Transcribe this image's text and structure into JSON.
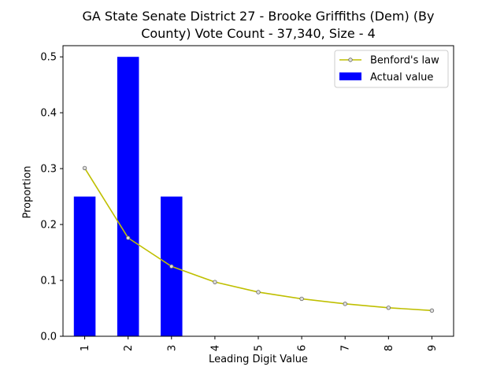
{
  "chart_data": {
    "type": "bar",
    "title_line1": "GA State Senate District 27 - Brooke Griffiths (Dem) (By",
    "title_line2": "County) Vote Count - 37,340, Size - 4",
    "xlabel": "Leading Digit Value",
    "ylabel": "Proportion",
    "categories": [
      "1",
      "2",
      "3",
      "4",
      "5",
      "6",
      "7",
      "8",
      "9"
    ],
    "ylim": [
      0,
      0.52
    ],
    "yticks": [
      0.0,
      0.1,
      0.2,
      0.3,
      0.4,
      0.5
    ],
    "ytick_labels": [
      "0.0",
      "0.1",
      "0.2",
      "0.3",
      "0.4",
      "0.5"
    ],
    "grid": false,
    "legend_position": "top-right",
    "series": [
      {
        "name": "Benford's law",
        "kind": "line",
        "color": "#bfbf00",
        "values": [
          0.301,
          0.176,
          0.125,
          0.097,
          0.079,
          0.067,
          0.058,
          0.051,
          0.046
        ]
      },
      {
        "name": "Actual value",
        "kind": "bar",
        "color": "#0000ff",
        "values": [
          0.25,
          0.5,
          0.25,
          0,
          0,
          0,
          0,
          0,
          0
        ]
      }
    ]
  }
}
